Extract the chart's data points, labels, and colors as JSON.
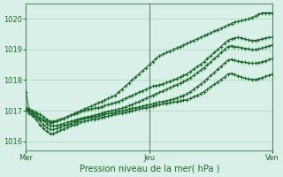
{
  "bg_color": "#d8f0e8",
  "grid_color": "#aad4be",
  "line_color": "#1a6b2a",
  "marker": "+",
  "title": "Pression niveau de la mer( hPa )",
  "ylim": [
    1015.7,
    1020.5
  ],
  "yticks": [
    1016,
    1017,
    1018,
    1019,
    1020
  ],
  "xtick_labels": [
    "Mer",
    "Jeu",
    "Ven"
  ],
  "xtick_positions": [
    0,
    36,
    72
  ],
  "vline_positions": [
    0,
    36,
    72
  ],
  "series": [
    [
      1017.6,
      1016.9,
      1016.85,
      1016.8,
      1016.75,
      1016.7,
      1016.65,
      1016.6,
      1016.62,
      1016.65,
      1016.7,
      1016.75,
      1016.8,
      1016.85,
      1016.9,
      1016.95,
      1017.0,
      1017.05,
      1017.1,
      1017.15,
      1017.2,
      1017.25,
      1017.3,
      1017.35,
      1017.4,
      1017.45,
      1017.5,
      1017.6,
      1017.7,
      1017.8,
      1017.9,
      1018.0,
      1018.1,
      1018.2,
      1018.3,
      1018.4,
      1018.5,
      1018.6,
      1018.7,
      1018.8,
      1018.85,
      1018.9,
      1018.95,
      1019.0,
      1019.05,
      1019.1,
      1019.15,
      1019.2,
      1019.25,
      1019.3,
      1019.35,
      1019.4,
      1019.45,
      1019.5,
      1019.55,
      1019.6,
      1019.65,
      1019.7,
      1019.75,
      1019.8,
      1019.85,
      1019.9,
      1019.92,
      1019.95,
      1019.97,
      1020.0,
      1020.05,
      1020.1,
      1020.15,
      1020.2,
      1020.2,
      1020.2,
      1020.2
    ],
    [
      1017.1,
      1017.05,
      1017.0,
      1016.95,
      1016.88,
      1016.8,
      1016.72,
      1016.65,
      1016.65,
      1016.68,
      1016.72,
      1016.75,
      1016.8,
      1016.85,
      1016.88,
      1016.92,
      1016.96,
      1017.0,
      1017.02,
      1017.05,
      1017.08,
      1017.1,
      1017.13,
      1017.16,
      1017.2,
      1017.23,
      1017.27,
      1017.3,
      1017.35,
      1017.4,
      1017.45,
      1017.5,
      1017.55,
      1017.6,
      1017.65,
      1017.7,
      1017.75,
      1017.8,
      1017.82,
      1017.85,
      1017.88,
      1017.92,
      1017.96,
      1018.0,
      1018.05,
      1018.1,
      1018.15,
      1018.2,
      1018.28,
      1018.36,
      1018.44,
      1018.52,
      1018.6,
      1018.7,
      1018.8,
      1018.9,
      1019.0,
      1019.1,
      1019.2,
      1019.3,
      1019.35,
      1019.38,
      1019.4,
      1019.38,
      1019.35,
      1019.32,
      1019.3,
      1019.3,
      1019.32,
      1019.35,
      1019.38,
      1019.4,
      1019.4
    ],
    [
      1017.05,
      1017.0,
      1016.95,
      1016.88,
      1016.78,
      1016.68,
      1016.58,
      1016.5,
      1016.5,
      1016.52,
      1016.55,
      1016.58,
      1016.62,
      1016.65,
      1016.68,
      1016.72,
      1016.75,
      1016.78,
      1016.8,
      1016.82,
      1016.85,
      1016.88,
      1016.92,
      1016.95,
      1016.98,
      1017.0,
      1017.02,
      1017.05,
      1017.08,
      1017.12,
      1017.16,
      1017.2,
      1017.25,
      1017.3,
      1017.35,
      1017.4,
      1017.45,
      1017.5,
      1017.55,
      1017.6,
      1017.65,
      1017.7,
      1017.75,
      1017.8,
      1017.85,
      1017.9,
      1017.95,
      1018.0,
      1018.08,
      1018.16,
      1018.24,
      1018.32,
      1018.4,
      1018.5,
      1018.6,
      1018.7,
      1018.8,
      1018.9,
      1019.0,
      1019.1,
      1019.12,
      1019.1,
      1019.08,
      1019.06,
      1019.04,
      1019.02,
      1019.0,
      1019.0,
      1019.02,
      1019.05,
      1019.08,
      1019.12,
      1019.15
    ],
    [
      1017.05,
      1016.98,
      1016.9,
      1016.8,
      1016.68,
      1016.55,
      1016.45,
      1016.38,
      1016.38,
      1016.42,
      1016.46,
      1016.5,
      1016.54,
      1016.58,
      1016.62,
      1016.66,
      1016.7,
      1016.73,
      1016.76,
      1016.78,
      1016.8,
      1016.82,
      1016.85,
      1016.88,
      1016.9,
      1016.92,
      1016.95,
      1016.98,
      1017.0,
      1017.02,
      1017.05,
      1017.08,
      1017.1,
      1017.12,
      1017.15,
      1017.18,
      1017.2,
      1017.22,
      1017.25,
      1017.28,
      1017.3,
      1017.32,
      1017.35,
      1017.38,
      1017.42,
      1017.46,
      1017.5,
      1017.55,
      1017.62,
      1017.7,
      1017.78,
      1017.86,
      1017.95,
      1018.05,
      1018.15,
      1018.25,
      1018.35,
      1018.45,
      1018.55,
      1018.65,
      1018.68,
      1018.65,
      1018.62,
      1018.6,
      1018.58,
      1018.56,
      1018.55,
      1018.55,
      1018.57,
      1018.6,
      1018.63,
      1018.67,
      1018.7
    ],
    [
      1017.0,
      1016.92,
      1016.82,
      1016.7,
      1016.55,
      1016.42,
      1016.32,
      1016.25,
      1016.25,
      1016.3,
      1016.35,
      1016.4,
      1016.45,
      1016.5,
      1016.54,
      1016.58,
      1016.62,
      1016.65,
      1016.68,
      1016.7,
      1016.72,
      1016.75,
      1016.78,
      1016.8,
      1016.82,
      1016.85,
      1016.88,
      1016.9,
      1016.92,
      1016.95,
      1016.98,
      1017.0,
      1017.02,
      1017.05,
      1017.08,
      1017.1,
      1017.12,
      1017.15,
      1017.18,
      1017.2,
      1017.22,
      1017.24,
      1017.26,
      1017.28,
      1017.3,
      1017.32,
      1017.34,
      1017.36,
      1017.4,
      1017.45,
      1017.5,
      1017.56,
      1017.62,
      1017.7,
      1017.78,
      1017.86,
      1017.94,
      1018.02,
      1018.1,
      1018.2,
      1018.22,
      1018.18,
      1018.14,
      1018.1,
      1018.06,
      1018.04,
      1018.02,
      1018.02,
      1018.05,
      1018.08,
      1018.12,
      1018.16,
      1018.2
    ]
  ]
}
